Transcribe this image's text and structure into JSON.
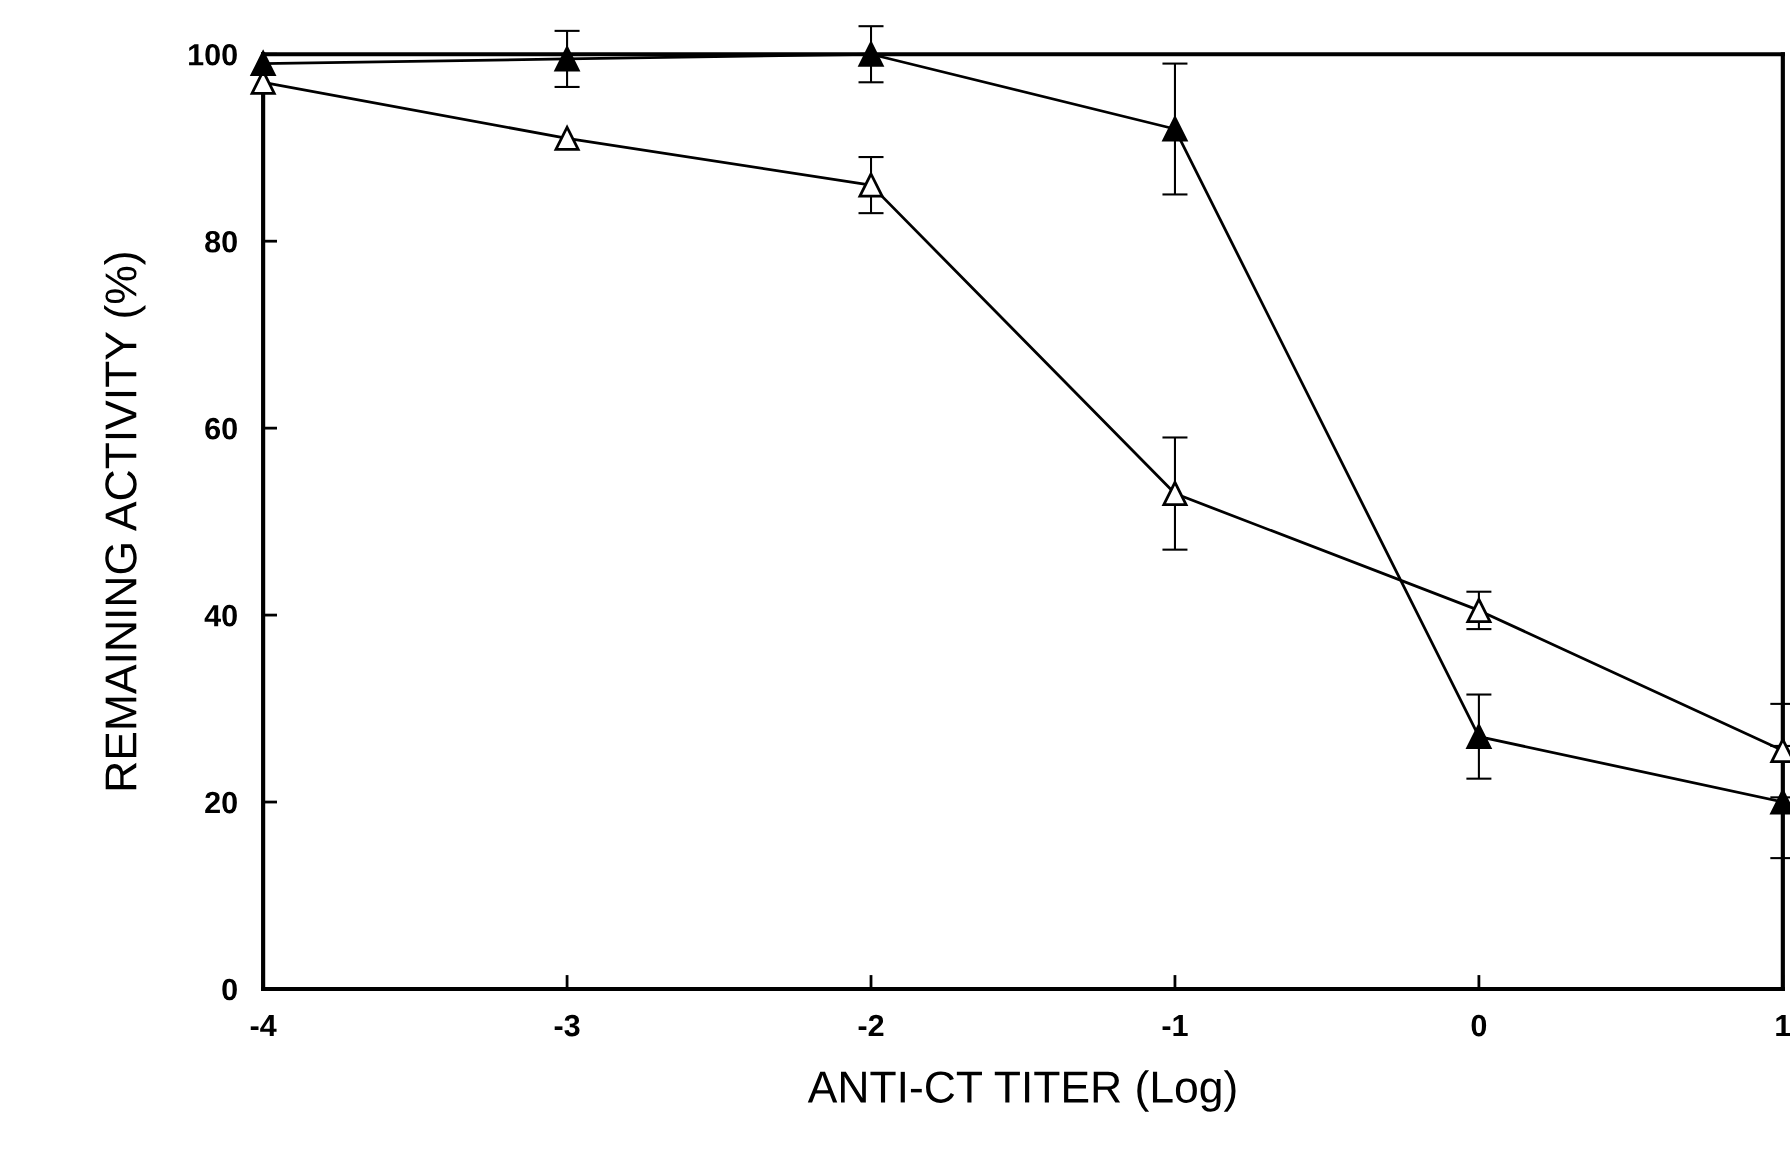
{
  "chart_data": {
    "type": "line",
    "xlabel": "ANTI-CT TITER (Log)",
    "ylabel": "REMAINING ACTIVITY (%)",
    "x": [
      -4,
      -3,
      -2,
      -1,
      0,
      1
    ],
    "series": [
      {
        "color": "#000000",
        "values": [
          99,
          99.5,
          100,
          92,
          27,
          20
        ],
        "errors": [
          null,
          3,
          3,
          7,
          4.5,
          6
        ]
      },
      {
        "color": "#000000",
        "values": [
          97,
          91,
          86,
          53,
          40.5,
          25.5
        ],
        "errors": [
          null,
          null,
          3,
          6,
          2,
          5
        ]
      }
    ],
    "xlim": [
      -4,
      1
    ],
    "xticks": [
      -4,
      -3,
      -2,
      -1,
      0,
      1
    ],
    "ylim": [
      0,
      100
    ],
    "yticks": [
      0,
      20,
      40,
      60,
      80,
      100
    ],
    "marker": "triangle",
    "line_style": "solid",
    "grid": false,
    "legend": false
  }
}
